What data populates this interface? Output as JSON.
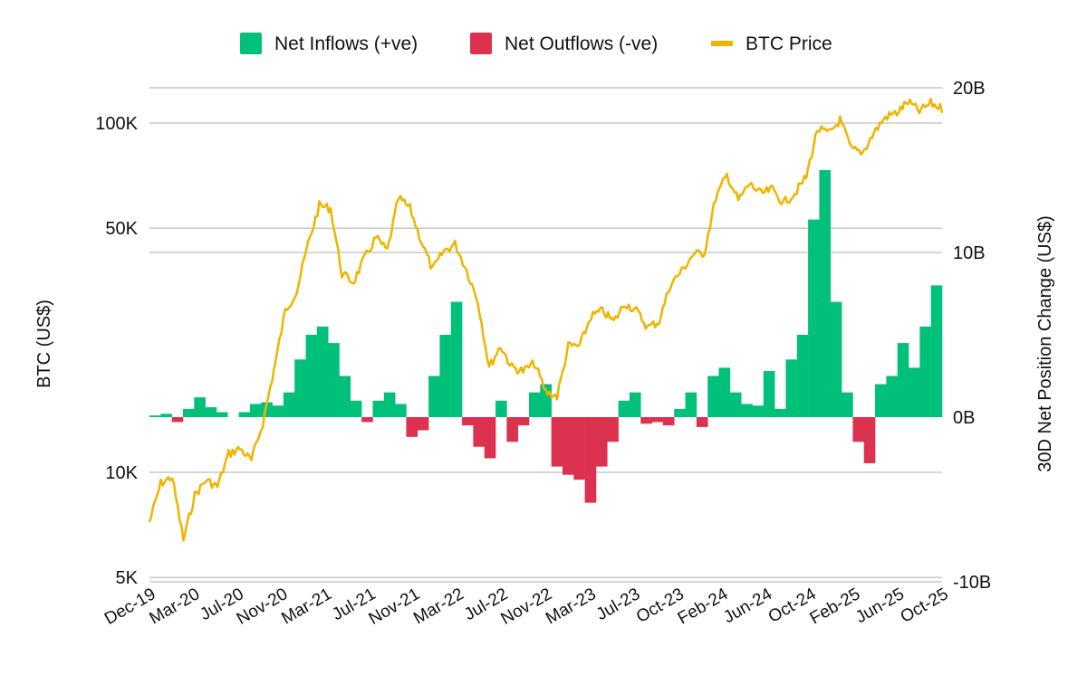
{
  "chart_data": {
    "type": "bar+line",
    "title": "",
    "legend": {
      "placement": "top",
      "items": [
        {
          "label": "Net Inflows (+ve)",
          "color": "#00c07a",
          "shape": "square"
        },
        {
          "label": "Net Outflows (-ve)",
          "color": "#dc3250",
          "shape": "square"
        },
        {
          "label": "BTC Price",
          "color": "#f0b400",
          "shape": "line"
        }
      ]
    },
    "left_axis": {
      "label": "BTC (US$)",
      "scale": "log",
      "range": [
        5000,
        140000
      ],
      "ticks": [
        {
          "v": 5000,
          "label": "5K"
        },
        {
          "v": 10000,
          "label": "10K"
        },
        {
          "v": 50000,
          "label": "50K"
        },
        {
          "v": 100000,
          "label": "100K"
        }
      ]
    },
    "right_axis": {
      "label": "30D Net Position Change (US$)",
      "scale": "linear",
      "range": [
        -10,
        20
      ],
      "unit": "B",
      "ticks": [
        {
          "v": -10,
          "label": "-10B"
        },
        {
          "v": 0,
          "label": "0B"
        },
        {
          "v": 10,
          "label": "10B"
        },
        {
          "v": 20,
          "label": "20B"
        }
      ]
    },
    "x_ticks": [
      "Dec-19",
      "Mar-20",
      "Jul-20",
      "Nov-20",
      "Mar-21",
      "Jul-21",
      "Nov-21",
      "Mar-22",
      "Jul-22",
      "Nov-22",
      "Mar-23",
      "Jul-23",
      "Oct-23",
      "Feb-24",
      "Jun-24",
      "Oct-24",
      "Feb-25",
      "Jun-25",
      "Oct-25"
    ],
    "x_range": [
      "2019-12",
      "2025-10"
    ],
    "grid": "horizontal",
    "months": [
      "2019-12",
      "2020-01",
      "2020-02",
      "2020-03",
      "2020-04",
      "2020-05",
      "2020-06",
      "2020-07",
      "2020-08",
      "2020-09",
      "2020-10",
      "2020-11",
      "2020-12",
      "2021-01",
      "2021-02",
      "2021-03",
      "2021-04",
      "2021-05",
      "2021-06",
      "2021-07",
      "2021-08",
      "2021-09",
      "2021-10",
      "2021-11",
      "2021-12",
      "2022-01",
      "2022-02",
      "2022-03",
      "2022-04",
      "2022-05",
      "2022-06",
      "2022-07",
      "2022-08",
      "2022-09",
      "2022-10",
      "2022-11",
      "2022-12",
      "2023-01",
      "2023-02",
      "2023-03",
      "2023-04",
      "2023-05",
      "2023-06",
      "2023-07",
      "2023-08",
      "2023-09",
      "2023-10",
      "2023-11",
      "2023-12",
      "2024-01",
      "2024-02",
      "2024-03",
      "2024-04",
      "2024-05",
      "2024-06",
      "2024-07",
      "2024-08",
      "2024-09",
      "2024-10",
      "2024-11",
      "2024-12",
      "2025-01",
      "2025-02",
      "2025-03",
      "2025-04",
      "2025-05",
      "2025-06",
      "2025-07",
      "2025-08",
      "2025-09",
      "2025-10"
    ],
    "btc_price": [
      7200,
      9300,
      9700,
      6400,
      8600,
      9500,
      9100,
      11300,
      11700,
      10800,
      13800,
      19700,
      29000,
      33000,
      45000,
      58000,
      57000,
      37000,
      35000,
      41000,
      47000,
      43000,
      61000,
      57000,
      46000,
      38000,
      43000,
      45000,
      38000,
      31000,
      20000,
      23000,
      20000,
      19500,
      20500,
      17000,
      16500,
      23000,
      23000,
      28000,
      29000,
      27000,
      30500,
      29000,
      26000,
      27000,
      34500,
      37700,
      42000,
      42500,
      61000,
      71000,
      60000,
      67000,
      62700,
      64600,
      59000,
      63000,
      70000,
      96000,
      93400,
      102000,
      84000,
      82500,
      94000,
      104000,
      107000,
      115000,
      108000,
      114000,
      110000
    ],
    "net_position_change_b": [
      0.1,
      0.2,
      -0.3,
      0.5,
      1.2,
      0.6,
      0.3,
      0,
      0.3,
      0.8,
      0.9,
      0.7,
      1.5,
      3.5,
      5,
      5.5,
      4.5,
      2.5,
      1,
      -0.3,
      1,
      1.5,
      0.8,
      -1.2,
      -0.8,
      2.5,
      5,
      7,
      -0.5,
      -1.8,
      -2.5,
      1,
      -1.5,
      -0.5,
      1.5,
      2,
      -3,
      -3.5,
      -3.8,
      -5.2,
      -3,
      -1.5,
      1,
      1.5,
      -0.4,
      -0.3,
      -0.5,
      0.5,
      1.5,
      -0.6,
      2.5,
      3,
      1.5,
      0.8,
      0.7,
      2.8,
      0.5,
      3.5,
      5,
      12,
      15,
      7,
      1.5,
      -1.5,
      -2.8,
      2,
      2.5,
      4.5,
      3,
      5.5,
      8
    ]
  }
}
